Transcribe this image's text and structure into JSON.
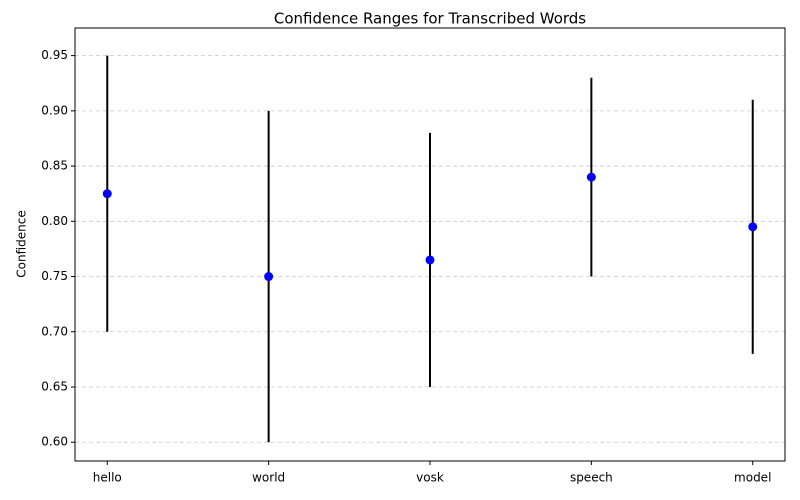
{
  "chart_data": {
    "type": "range",
    "title": "Confidence Ranges for Transcribed Words",
    "ylabel": "Confidence",
    "categories": [
      "hello",
      "world",
      "vosk",
      "speech",
      "model"
    ],
    "low": [
      0.7,
      0.6,
      0.65,
      0.75,
      0.68
    ],
    "high": [
      0.95,
      0.9,
      0.88,
      0.93,
      0.91
    ],
    "values": [
      0.825,
      0.75,
      0.765,
      0.84,
      0.795
    ],
    "color": "blue",
    "range_color": "black",
    "ylim": [
      0.583,
      0.975
    ],
    "yticks": [
      {
        "value": 0.6,
        "label": "0.60"
      },
      {
        "value": 0.65,
        "label": "0.65"
      },
      {
        "value": 0.7,
        "label": "0.70"
      },
      {
        "value": 0.75,
        "label": "0.75"
      },
      {
        "value": 0.8,
        "label": "0.80"
      },
      {
        "value": 0.85,
        "label": "0.85"
      },
      {
        "value": 0.9,
        "label": "0.90"
      },
      {
        "value": 0.95,
        "label": "0.95"
      }
    ],
    "grid": true
  }
}
